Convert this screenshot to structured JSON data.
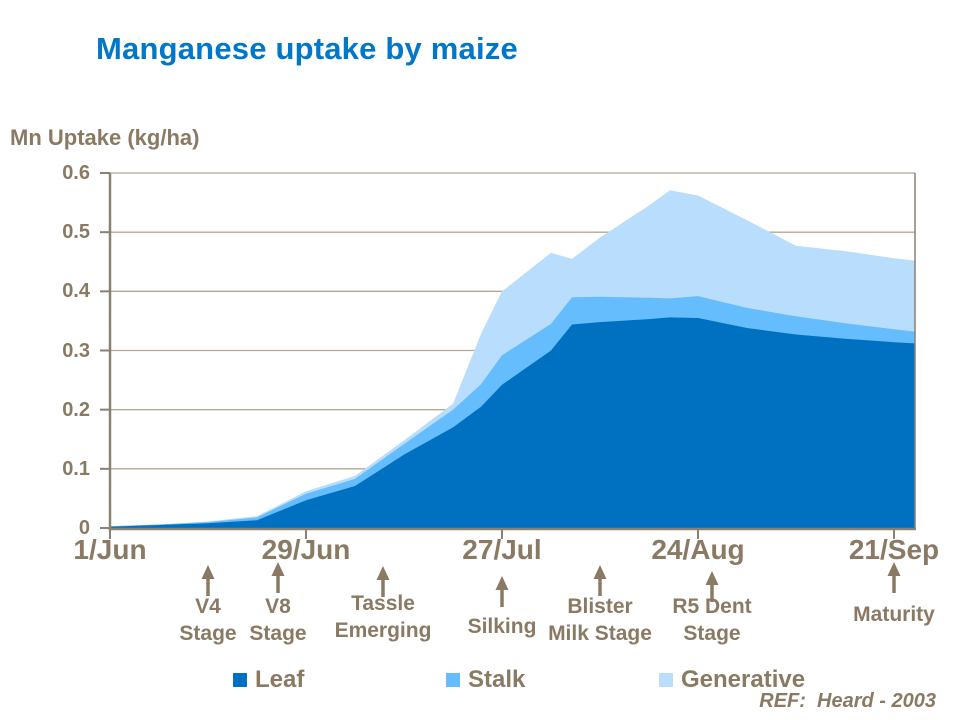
{
  "title": "Manganese uptake by maize",
  "y_axis_title": "Mn Uptake (kg/ha)",
  "ref_note": "REF:  Heard - 2003",
  "colors": {
    "title_blue": "#0077C8",
    "text_taupe": "#8A7A64",
    "axis_line": "#8C8170",
    "gridline": "#B3A896",
    "leaf": "#0070C0",
    "stalk": "#66BDFD",
    "generative": "#B9DDFC"
  },
  "chart_data": {
    "type": "area",
    "stacked": true,
    "title": "Manganese uptake by maize",
    "ylabel": "Mn Uptake (kg/ha)",
    "ylim": [
      0,
      0.6
    ],
    "xlim_days": [
      0,
      115
    ],
    "grid": "horizontal",
    "legend_position": "bottom",
    "y_tick_values": [
      0,
      0.1,
      0.2,
      0.3,
      0.4,
      0.5,
      0.6
    ],
    "y_tick_labels": [
      "0",
      "0.1",
      "0.2",
      "0.3",
      "0.4",
      "0.5",
      "0.6"
    ],
    "x_tick_days": [
      0,
      28,
      56,
      84,
      112
    ],
    "x_tick_labels": [
      "1/Jun",
      "29/Jun",
      "27/Jul",
      "24/Aug",
      "21/Sep"
    ],
    "x_days": [
      0,
      7,
      14,
      21,
      28,
      35,
      42,
      49,
      53,
      56,
      63,
      66,
      70,
      77,
      80,
      84,
      91,
      98,
      105,
      112,
      115
    ],
    "x_dates": [
      "1/Jun",
      "8/Jun",
      "15/Jun",
      "22/Jun",
      "29/Jun",
      "6/Jul",
      "13/Jul",
      "20/Jul",
      "24/Jul",
      "27/Jul",
      "3/Aug",
      "6/Aug",
      "10/Aug",
      "17/Aug",
      "20/Aug",
      "24/Aug",
      "31/Aug",
      "7/Sep",
      "14/Sep",
      "21/Sep",
      "24/Sep"
    ],
    "series": [
      {
        "name": "Leaf",
        "color_key": "leaf",
        "values": [
          0.002,
          0.005,
          0.008,
          0.013,
          0.047,
          0.071,
          0.124,
          0.17,
          0.205,
          0.242,
          0.3,
          0.344,
          0.348,
          0.353,
          0.356,
          0.355,
          0.338,
          0.327,
          0.32,
          0.314,
          0.312
        ]
      },
      {
        "name": "Stalk",
        "color_key": "stalk",
        "values": [
          0.001,
          0.001,
          0.002,
          0.005,
          0.011,
          0.012,
          0.018,
          0.03,
          0.038,
          0.05,
          0.045,
          0.046,
          0.043,
          0.036,
          0.032,
          0.037,
          0.034,
          0.031,
          0.026,
          0.022,
          0.02
        ]
      },
      {
        "name": "Generative",
        "color_key": "generative",
        "values": [
          0.0,
          0.0,
          0.001,
          0.002,
          0.004,
          0.005,
          0.006,
          0.01,
          0.085,
          0.108,
          0.12,
          0.065,
          0.1,
          0.156,
          0.183,
          0.17,
          0.148,
          0.119,
          0.122,
          0.12,
          0.12
        ]
      }
    ]
  },
  "stages": [
    {
      "label": "V4 Stage",
      "lines": [
        "V4",
        "Stage"
      ],
      "day": 14
    },
    {
      "label": "V8 Stage",
      "lines": [
        "V8",
        "Stage"
      ],
      "day": 24
    },
    {
      "label": "Tassle Emerging",
      "lines": [
        "Tassle",
        "Emerging"
      ],
      "day": 39
    },
    {
      "label": "Silking",
      "lines": [
        "Silking"
      ],
      "day": 56
    },
    {
      "label": "Blister Milk Stage",
      "lines": [
        "Blister",
        "Milk Stage"
      ],
      "day": 70
    },
    {
      "label": "R5 Dent Stage",
      "lines": [
        "R5 Dent",
        "Stage"
      ],
      "day": 86
    },
    {
      "label": "Maturity",
      "lines": [
        "Maturity"
      ],
      "day": 112
    }
  ],
  "legend": {
    "items": [
      {
        "label": "Leaf",
        "color_key": "leaf"
      },
      {
        "label": "Stalk",
        "color_key": "stalk"
      },
      {
        "label": "Generative",
        "color_key": "generative"
      }
    ]
  }
}
